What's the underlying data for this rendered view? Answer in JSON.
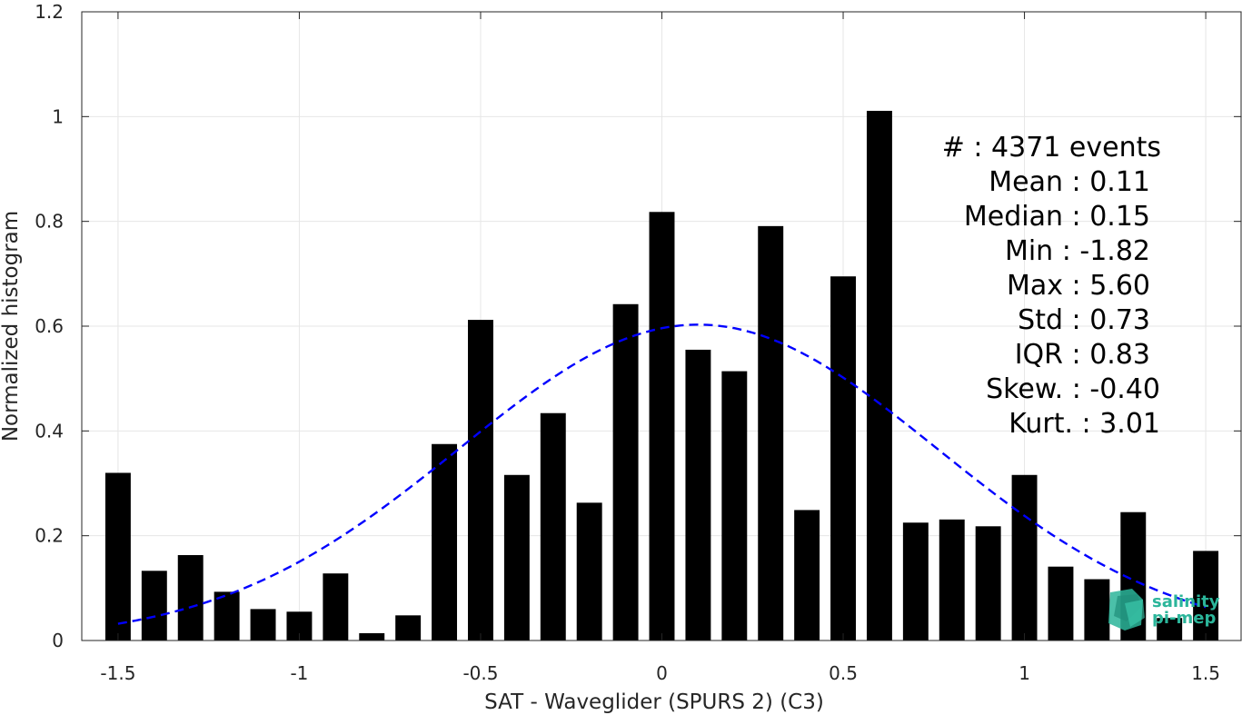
{
  "chart_data": {
    "type": "bar",
    "xlabel": "SAT - Waveglider (SPURS 2) (C3)",
    "ylabel": "Normalized histogram",
    "xlim": [
      -1.6,
      1.6
    ],
    "ylim": [
      0,
      1.2
    ],
    "xticks": [
      -1.5,
      -1,
      -0.5,
      0,
      0.5,
      1,
      1.5
    ],
    "xtick_labels": [
      "-1.5",
      "-1",
      "-0.5",
      "0",
      "0.5",
      "1",
      "1.5"
    ],
    "yticks": [
      0,
      0.2,
      0.4,
      0.6,
      0.8,
      1,
      1.2
    ],
    "ytick_labels": [
      "0",
      "0.2",
      "0.4",
      "0.6",
      "0.8",
      "1",
      "1.2"
    ],
    "grid": true,
    "bar_color": "#000000",
    "x": [
      -1.5,
      -1.4,
      -1.3,
      -1.2,
      -1.1,
      -1.0,
      -0.9,
      -0.8,
      -0.7,
      -0.6,
      -0.5,
      -0.4,
      -0.3,
      -0.2,
      -0.1,
      0.0,
      0.1,
      0.2,
      0.3,
      0.4,
      0.5,
      0.6,
      0.7,
      0.8,
      0.9,
      1.0,
      1.1,
      1.2,
      1.3,
      1.4,
      1.5
    ],
    "values": [
      0.32,
      0.133,
      0.163,
      0.093,
      0.06,
      0.055,
      0.128,
      0.014,
      0.048,
      0.375,
      0.612,
      0.316,
      0.434,
      0.263,
      0.642,
      0.818,
      0.555,
      0.514,
      0.791,
      0.249,
      0.695,
      1.011,
      0.225,
      0.231,
      0.218,
      0.316,
      0.141,
      0.117,
      0.245,
      0.043,
      0.171
    ],
    "fit": {
      "type": "gaussian",
      "color": "#0000ff",
      "style": "dashed",
      "x_range": [
        -1.5,
        1.5
      ],
      "mean": 0.1,
      "std": 0.66,
      "peak": 0.603
    },
    "stats_lines": [
      "#  : 4371 events",
      "Mean : 0.11",
      "Median : 0.15",
      "Min : -1.82",
      "Max : 5.60",
      "Std : 0.73",
      "IQR : 0.83",
      "Skew. : -0.40",
      "Kurt. : 3.01"
    ]
  },
  "logo": {
    "line1": "salinity",
    "line2": "pi-mep",
    "color": "#2bb59a",
    "icon": "salinity-pimep-logo-icon"
  }
}
